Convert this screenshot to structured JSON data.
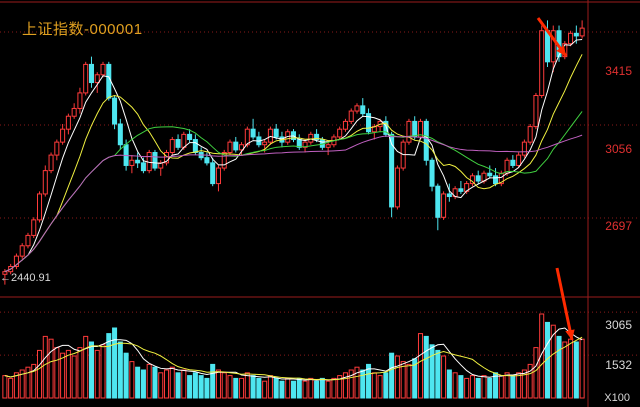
{
  "title": "上证指数-000001",
  "price_axis": {
    "ticks": [
      "3415",
      "3056",
      "2697"
    ]
  },
  "volume_axis": {
    "ticks": [
      "3065",
      "1532"
    ],
    "unit_label": "X100"
  },
  "annotation_low": {
    "text": "2440.91"
  },
  "colors": {
    "up": "#ff3b3b",
    "down": "#4ee6f0",
    "ma5": "#ffffff",
    "ma10": "#f0f040",
    "ma20": "#40d040",
    "ma60": "#c060c0",
    "grid": "#8a1a1a",
    "title": "#e0a020",
    "arrow": "#ff2a00"
  },
  "chart_data": {
    "type": "candlestick",
    "title": "上证指数-000001",
    "ylim_price": [
      2400,
      3500
    ],
    "ylim_volume": [
      0,
      3500
    ],
    "price_ticks": [
      3415,
      3056,
      2697
    ],
    "volume_ticks": [
      3065,
      1532
    ],
    "low_marker": 2440.91,
    "candles": [
      [
        2480,
        2500,
        2440,
        2490,
        800
      ],
      [
        2490,
        2520,
        2480,
        2510,
        700
      ],
      [
        2510,
        2560,
        2500,
        2550,
        900
      ],
      [
        2550,
        2600,
        2540,
        2590,
        1000
      ],
      [
        2590,
        2640,
        2580,
        2630,
        1100
      ],
      [
        2630,
        2700,
        2620,
        2690,
        1200
      ],
      [
        2690,
        2800,
        2680,
        2790,
        1700
      ],
      [
        2790,
        2900,
        2780,
        2880,
        2200
      ],
      [
        2880,
        2950,
        2870,
        2940,
        2100
      ],
      [
        2940,
        3000,
        2920,
        2990,
        1800
      ],
      [
        2990,
        3060,
        2980,
        3040,
        1600
      ],
      [
        3040,
        3100,
        3020,
        3090,
        1700
      ],
      [
        3090,
        3140,
        3080,
        3120,
        1500
      ],
      [
        3120,
        3200,
        3100,
        3180,
        1800
      ],
      [
        3180,
        3300,
        3170,
        3290,
        2200
      ],
      [
        3290,
        3320,
        3200,
        3220,
        2000
      ],
      [
        3220,
        3260,
        3180,
        3250,
        1700
      ],
      [
        3250,
        3300,
        3240,
        3290,
        1900
      ],
      [
        3290,
        3300,
        3150,
        3160,
        2300
      ],
      [
        3160,
        3170,
        3040,
        3060,
        2500
      ],
      [
        3060,
        3080,
        2960,
        2980,
        2000
      ],
      [
        2980,
        3000,
        2880,
        2900,
        1600
      ],
      [
        2900,
        2940,
        2870,
        2920,
        1300
      ],
      [
        2920,
        2950,
        2890,
        2910,
        1100
      ],
      [
        2910,
        2930,
        2870,
        2880,
        1000
      ],
      [
        2880,
        2960,
        2870,
        2950,
        1200
      ],
      [
        2950,
        2960,
        2880,
        2890,
        1100
      ],
      [
        2890,
        2920,
        2860,
        2910,
        900
      ],
      [
        2910,
        2960,
        2900,
        2950,
        1000
      ],
      [
        2950,
        3010,
        2940,
        3000,
        1100
      ],
      [
        3000,
        3020,
        2960,
        2970,
        900
      ],
      [
        2970,
        3030,
        2960,
        3020,
        1000
      ],
      [
        3020,
        3040,
        2990,
        3000,
        800
      ],
      [
        3000,
        3020,
        2940,
        2950,
        900
      ],
      [
        2950,
        2970,
        2920,
        2930,
        800
      ],
      [
        2930,
        2950,
        2900,
        2910,
        700
      ],
      [
        2910,
        2930,
        2820,
        2830,
        1200
      ],
      [
        2830,
        2900,
        2800,
        2890,
        1000
      ],
      [
        2890,
        2960,
        2880,
        2950,
        900
      ],
      [
        2950,
        3000,
        2940,
        2990,
        800
      ],
      [
        2990,
        3010,
        2950,
        2960,
        700
      ],
      [
        2960,
        2990,
        2940,
        2980,
        700
      ],
      [
        2980,
        3050,
        2970,
        3040,
        900
      ],
      [
        3040,
        3080,
        3000,
        3010,
        800
      ],
      [
        3010,
        3030,
        2970,
        2980,
        700
      ],
      [
        2980,
        3000,
        2950,
        2990,
        600
      ],
      [
        2990,
        3050,
        2980,
        3040,
        800
      ],
      [
        3040,
        3060,
        3000,
        3010,
        700
      ],
      [
        3010,
        3030,
        2970,
        2990,
        600
      ],
      [
        2990,
        3040,
        2980,
        3030,
        700
      ],
      [
        3030,
        3040,
        2990,
        3000,
        600
      ],
      [
        3000,
        3020,
        2960,
        2970,
        700
      ],
      [
        2970,
        3000,
        2950,
        2990,
        600
      ],
      [
        2990,
        3030,
        2980,
        3020,
        700
      ],
      [
        3020,
        3040,
        2990,
        3000,
        600
      ],
      [
        3000,
        3010,
        2960,
        2970,
        700
      ],
      [
        2970,
        2990,
        2940,
        2980,
        600
      ],
      [
        2980,
        3020,
        2970,
        3010,
        700
      ],
      [
        3010,
        3050,
        3000,
        3040,
        800
      ],
      [
        3040,
        3080,
        3030,
        3070,
        900
      ],
      [
        3070,
        3120,
        3060,
        3110,
        1000
      ],
      [
        3110,
        3140,
        3100,
        3130,
        1100
      ],
      [
        3130,
        3160,
        3090,
        3100,
        1000
      ],
      [
        3100,
        3120,
        3020,
        3030,
        1200
      ],
      [
        3030,
        3060,
        3000,
        3050,
        900
      ],
      [
        3050,
        3080,
        3030,
        3070,
        800
      ],
      [
        3070,
        3090,
        3010,
        3020,
        900
      ],
      [
        3020,
        3030,
        2700,
        2740,
        1600
      ],
      [
        2740,
        2900,
        2730,
        2890,
        1500
      ],
      [
        2890,
        3000,
        2880,
        2990,
        1300
      ],
      [
        2990,
        3080,
        2980,
        3070,
        1200
      ],
      [
        3070,
        3090,
        3000,
        3010,
        1400
      ],
      [
        3010,
        3080,
        3000,
        3070,
        2300
      ],
      [
        3070,
        3080,
        2900,
        2920,
        2200
      ],
      [
        2920,
        2930,
        2800,
        2820,
        1900
      ],
      [
        2820,
        2830,
        2650,
        2700,
        1700
      ],
      [
        2700,
        2800,
        2690,
        2790,
        1500
      ],
      [
        2790,
        2830,
        2760,
        2780,
        1000
      ],
      [
        2780,
        2820,
        2770,
        2810,
        900
      ],
      [
        2810,
        2840,
        2790,
        2800,
        800
      ],
      [
        2800,
        2840,
        2790,
        2830,
        700
      ],
      [
        2830,
        2870,
        2820,
        2860,
        800
      ],
      [
        2860,
        2880,
        2830,
        2840,
        700
      ],
      [
        2840,
        2880,
        2830,
        2870,
        800
      ],
      [
        2870,
        2900,
        2850,
        2860,
        700
      ],
      [
        2860,
        2890,
        2820,
        2830,
        900
      ],
      [
        2830,
        2880,
        2820,
        2870,
        800
      ],
      [
        2870,
        2930,
        2860,
        2920,
        900
      ],
      [
        2920,
        2940,
        2890,
        2900,
        800
      ],
      [
        2900,
        2950,
        2890,
        2940,
        900
      ],
      [
        2940,
        3000,
        2930,
        2990,
        1000
      ],
      [
        2990,
        3060,
        2980,
        3050,
        1200
      ],
      [
        3050,
        3180,
        3040,
        3170,
        1800
      ],
      [
        3170,
        3440,
        3160,
        3420,
        3000
      ],
      [
        3420,
        3460,
        3280,
        3300,
        2700
      ],
      [
        3300,
        3440,
        3260,
        3420,
        2600
      ],
      [
        3420,
        3440,
        3300,
        3320,
        2200
      ],
      [
        3320,
        3380,
        3310,
        3370,
        2000
      ],
      [
        3370,
        3420,
        3360,
        3410,
        2100
      ],
      [
        3410,
        3440,
        3370,
        3400,
        2000
      ],
      [
        3400,
        3460,
        3390,
        3430,
        2100
      ]
    ],
    "ma_windows": [
      5,
      10,
      20,
      60
    ]
  }
}
